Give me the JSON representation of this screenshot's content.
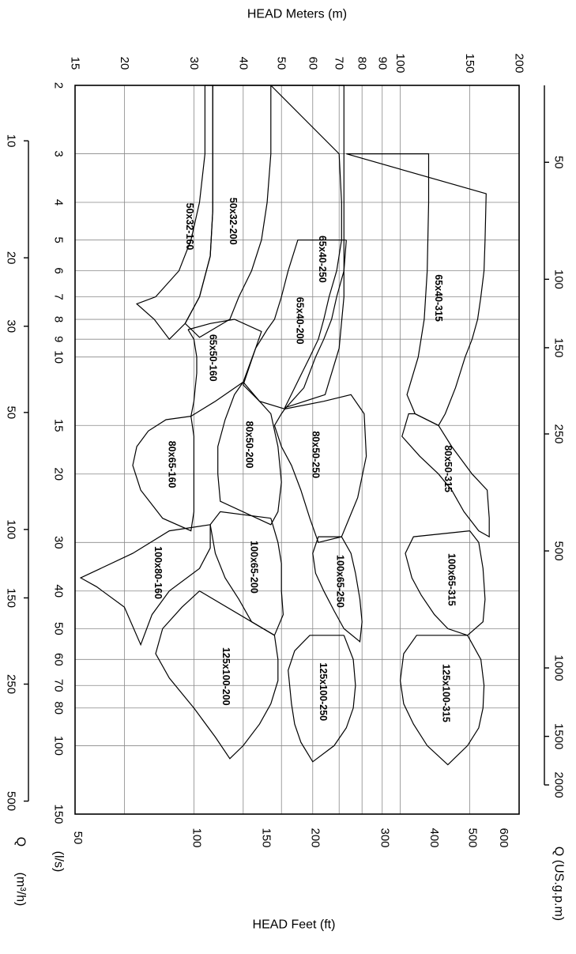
{
  "chart_data": {
    "type": "line",
    "title": "",
    "grid": true,
    "axes": {
      "q_ls": {
        "label": "(l/s)",
        "scale": "log",
        "range": [
          2,
          150
        ],
        "ticks": [
          "2",
          "3",
          "4",
          "5",
          "6",
          "7",
          "8",
          "9",
          "10",
          "15",
          "20",
          "30",
          "40",
          "50",
          "60",
          "70",
          "80",
          "100",
          "150"
        ]
      },
      "q_m3h": {
        "label": "Q",
        "sublabel": "(m³/h)",
        "scale": "log",
        "ticks": [
          "10",
          "20",
          "30",
          "50",
          "100",
          "150",
          "250",
          "500"
        ]
      },
      "q_usgpm": {
        "label": "Q (US.g.p.m)",
        "scale": "log",
        "ticks": [
          "50",
          "100",
          "150",
          "250",
          "500",
          "1000",
          "1500",
          "2000"
        ]
      },
      "head_m": {
        "label": "HEAD Meters (m)",
        "scale": "log",
        "range": [
          15,
          200
        ],
        "ticks": [
          "15",
          "20",
          "30",
          "40",
          "50",
          "60",
          "70",
          "80",
          "90",
          "100",
          "150",
          "200"
        ]
      },
      "head_ft": {
        "label": "HEAD Feet (ft)",
        "scale": "log",
        "ticks": [
          "50",
          "100",
          "150",
          "200",
          "300",
          "400",
          "500",
          "600"
        ]
      }
    },
    "series": [
      {
        "name": "50x32-160",
        "points": [
          [
            2,
            32
          ],
          [
            3,
            32
          ],
          [
            4,
            31
          ],
          [
            5,
            29.5
          ],
          [
            6,
            27.5
          ],
          [
            7,
            24
          ],
          [
            7.3,
            21.5
          ],
          [
            8,
            23.8
          ],
          [
            9,
            26
          ],
          [
            8.2,
            28.5
          ],
          [
            7,
            31
          ],
          [
            5.5,
            33
          ],
          [
            4.2,
            33.5
          ],
          [
            3,
            33.5
          ],
          [
            2,
            33.5
          ],
          [
            2,
            32
          ]
        ]
      },
      {
        "name": "50x32-200",
        "points": [
          [
            2,
            47
          ],
          [
            3,
            47
          ],
          [
            4,
            46
          ],
          [
            5,
            44.5
          ],
          [
            6,
            42
          ],
          [
            7,
            39
          ],
          [
            8,
            37
          ],
          [
            8.9,
            31
          ],
          [
            8.2,
            28.5
          ],
          [
            7,
            31
          ],
          [
            5.5,
            33
          ],
          [
            4.2,
            33.5
          ],
          [
            3,
            33.5
          ],
          [
            2,
            33.5
          ],
          [
            2,
            47
          ]
        ]
      },
      {
        "name": "65x40-250",
        "points": [
          [
            2,
            47
          ],
          [
            3,
            70
          ],
          [
            4,
            71
          ],
          [
            5,
            71
          ],
          [
            6,
            69
          ],
          [
            7,
            66
          ],
          [
            8,
            64
          ],
          [
            9,
            62
          ],
          [
            10,
            59
          ],
          [
            12,
            54
          ],
          [
            13.5,
            51
          ],
          [
            12.5,
            64.5
          ],
          [
            9.5,
            70
          ],
          [
            7,
            72
          ],
          [
            5,
            72
          ],
          [
            3,
            72
          ],
          [
            2,
            72
          ],
          [
            2,
            47
          ]
        ]
      },
      {
        "name": "65x40-315",
        "points": [
          [
            3,
            73
          ],
          [
            3.8,
            165
          ],
          [
            5,
            164
          ],
          [
            6,
            163
          ],
          [
            7,
            160
          ],
          [
            8,
            157
          ],
          [
            9,
            152
          ],
          [
            10,
            146
          ],
          [
            12,
            138
          ],
          [
            14,
            130
          ],
          [
            15,
            125
          ],
          [
            14,
            109
          ],
          [
            12.5,
            104
          ],
          [
            10,
            111
          ],
          [
            8,
            115
          ],
          [
            6,
            117
          ],
          [
            4,
            118
          ],
          [
            3,
            118
          ],
          [
            3,
            73
          ]
        ]
      },
      {
        "name": "65x40-200",
        "points": [
          [
            5,
            73
          ],
          [
            6,
            72
          ],
          [
            7,
            69
          ],
          [
            8,
            67
          ],
          [
            9,
            64
          ],
          [
            10,
            61
          ],
          [
            12,
            57
          ],
          [
            13.6,
            51
          ],
          [
            13,
            44
          ],
          [
            11.8,
            40
          ],
          [
            9.5,
            43
          ],
          [
            8.5,
            46
          ],
          [
            8,
            48
          ],
          [
            7,
            50
          ],
          [
            6,
            52
          ],
          [
            5,
            55
          ],
          [
            5,
            73
          ]
        ]
      },
      {
        "name": "65x50-160",
        "points": [
          [
            8.5,
            29
          ],
          [
            9,
            30
          ],
          [
            10,
            30.5
          ],
          [
            11,
            30.5
          ],
          [
            13,
            30
          ],
          [
            14.2,
            29.5
          ],
          [
            13,
            34
          ],
          [
            11.6,
            40
          ],
          [
            9.5,
            43
          ],
          [
            8.6,
            44.5
          ],
          [
            8,
            38
          ],
          [
            8.2,
            33
          ],
          [
            8.5,
            29
          ]
        ]
      },
      {
        "name": "80x50-200",
        "points": [
          [
            11.6,
            40
          ],
          [
            13,
            44
          ],
          [
            14,
            47
          ],
          [
            17,
            49
          ],
          [
            21,
            50
          ],
          [
            25,
            49
          ],
          [
            27,
            47
          ],
          [
            23.5,
            35
          ],
          [
            20,
            34.5
          ],
          [
            17,
            34.5
          ],
          [
            14.5,
            36
          ],
          [
            12.5,
            38
          ],
          [
            11.6,
            40
          ]
        ]
      },
      {
        "name": "80x50-250",
        "points": [
          [
            13.6,
            51
          ],
          [
            14,
            50
          ],
          [
            15,
            48
          ],
          [
            17,
            50
          ],
          [
            19,
            53
          ],
          [
            22,
            56
          ],
          [
            26,
            59
          ],
          [
            30,
            62
          ],
          [
            29,
            71
          ],
          [
            23,
            78
          ],
          [
            18,
            82
          ],
          [
            14,
            81
          ],
          [
            12.5,
            75
          ],
          [
            13,
            64
          ],
          [
            13.6,
            51
          ]
        ]
      },
      {
        "name": "80x50-315",
        "points": [
          [
            14,
            109
          ],
          [
            15,
            125
          ],
          [
            17,
            135
          ],
          [
            20,
            152
          ],
          [
            22,
            166
          ],
          [
            26,
            168
          ],
          [
            29,
            168
          ],
          [
            28,
            158
          ],
          [
            25,
            145
          ],
          [
            22,
            135
          ],
          [
            20,
            125
          ],
          [
            18,
            112
          ],
          [
            16,
            101
          ],
          [
            14,
            105
          ],
          [
            14,
            109
          ]
        ]
      },
      {
        "name": "80x65-160",
        "points": [
          [
            14.2,
            29.5
          ],
          [
            16,
            30
          ],
          [
            19,
            30
          ],
          [
            22,
            30
          ],
          [
            25,
            30
          ],
          [
            28,
            29.5
          ],
          [
            26,
            25
          ],
          [
            22,
            22
          ],
          [
            19,
            21
          ],
          [
            17,
            21.5
          ],
          [
            15.5,
            23
          ],
          [
            14.5,
            25.5
          ],
          [
            14.2,
            29.5
          ]
        ]
      },
      {
        "name": "100x65-200",
        "points": [
          [
            26,
            47
          ],
          [
            30,
            49
          ],
          [
            34,
            50
          ],
          [
            40,
            50
          ],
          [
            46,
            50.5
          ],
          [
            52,
            48
          ],
          [
            48,
            42
          ],
          [
            42,
            39
          ],
          [
            37,
            36
          ],
          [
            32,
            34
          ],
          [
            27,
            33
          ],
          [
            25,
            35
          ],
          [
            26,
            47
          ]
        ]
      },
      {
        "name": "100x65-250",
        "points": [
          [
            29,
            71
          ],
          [
            32,
            75
          ],
          [
            36,
            77
          ],
          [
            42,
            79
          ],
          [
            48,
            80
          ],
          [
            54,
            79
          ],
          [
            50,
            72
          ],
          [
            45,
            68
          ],
          [
            40,
            64
          ],
          [
            36,
            61
          ],
          [
            32,
            60
          ],
          [
            29,
            62
          ],
          [
            29,
            71
          ]
        ]
      },
      {
        "name": "100x65-315",
        "points": [
          [
            28,
            150
          ],
          [
            30,
            158
          ],
          [
            35,
            162
          ],
          [
            42,
            164
          ],
          [
            48,
            162
          ],
          [
            52,
            148
          ],
          [
            50,
            132
          ],
          [
            46,
            122
          ],
          [
            41,
            113
          ],
          [
            37,
            107
          ],
          [
            32,
            103
          ],
          [
            29,
            108
          ],
          [
            28,
            150
          ]
        ]
      },
      {
        "name": "100x80-160",
        "points": [
          [
            27,
            33
          ],
          [
            31,
            33
          ],
          [
            35,
            31
          ],
          [
            40,
            26
          ],
          [
            46,
            23.5
          ],
          [
            55,
            22
          ],
          [
            44,
            20
          ],
          [
            39,
            17
          ],
          [
            37,
            15.5
          ],
          [
            32,
            21
          ],
          [
            28,
            26
          ],
          [
            27,
            33
          ]
        ]
      },
      {
        "name": "125x100-200",
        "points": [
          [
            52,
            48
          ],
          [
            60,
            49
          ],
          [
            68,
            49
          ],
          [
            78,
            47
          ],
          [
            88,
            44
          ],
          [
            100,
            40
          ],
          [
            108,
            37
          ],
          [
            95,
            34
          ],
          [
            80,
            30
          ],
          [
            67,
            26
          ],
          [
            58,
            24
          ],
          [
            50,
            25
          ],
          [
            44,
            28
          ],
          [
            40,
            31
          ],
          [
            52,
            48
          ]
        ]
      },
      {
        "name": "125x100-250",
        "points": [
          [
            52,
            72
          ],
          [
            60,
            76
          ],
          [
            70,
            77
          ],
          [
            80,
            76
          ],
          [
            90,
            73
          ],
          [
            100,
            68
          ],
          [
            110,
            60
          ],
          [
            98,
            56
          ],
          [
            88,
            54
          ],
          [
            78,
            53
          ],
          [
            64,
            52
          ],
          [
            57,
            54
          ],
          [
            52,
            59
          ],
          [
            52,
            72
          ]
        ]
      },
      {
        "name": "125x100-315",
        "points": [
          [
            52,
            148
          ],
          [
            60,
            160
          ],
          [
            70,
            163
          ],
          [
            80,
            162
          ],
          [
            90,
            158
          ],
          [
            100,
            148
          ],
          [
            112,
            132
          ],
          [
            100,
            117
          ],
          [
            88,
            108
          ],
          [
            78,
            102
          ],
          [
            68,
            100
          ],
          [
            58,
            102
          ],
          [
            52,
            110
          ],
          [
            52,
            148
          ]
        ]
      }
    ]
  }
}
